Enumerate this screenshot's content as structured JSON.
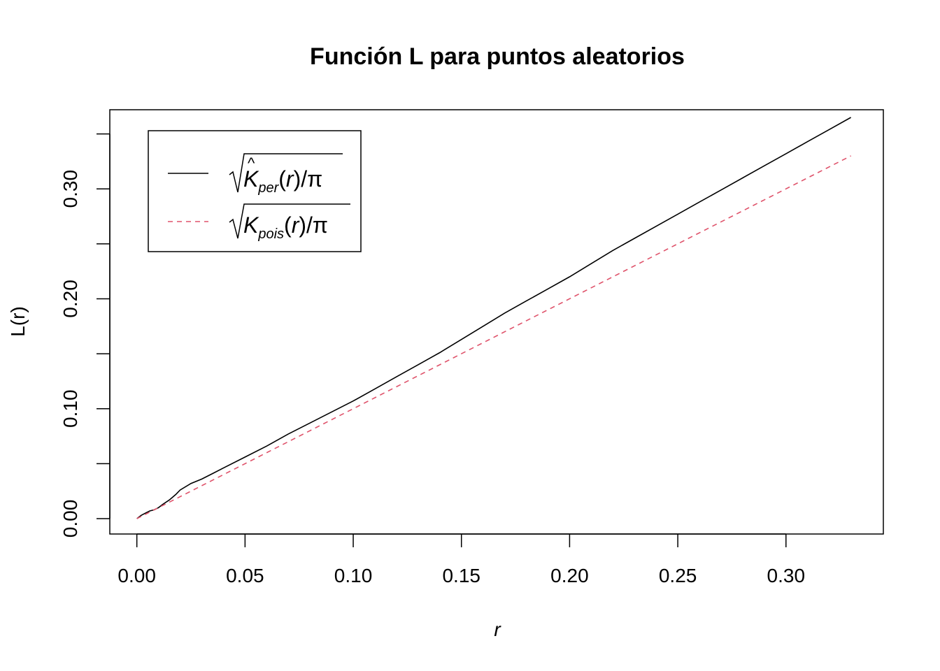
{
  "chart_data": {
    "type": "line",
    "title": "Función L para puntos aleatorios",
    "xlabel": "r",
    "ylabel": "L(r)",
    "xlim": [
      -0.0125,
      0.345
    ],
    "ylim": [
      -0.014,
      0.372
    ],
    "xticks": [
      0.0,
      0.05,
      0.1,
      0.15,
      0.2,
      0.25,
      0.3
    ],
    "xtick_labels": [
      "0.00",
      "0.05",
      "0.10",
      "0.15",
      "0.20",
      "0.25",
      "0.30"
    ],
    "yticks": [
      0.0,
      0.05,
      0.1,
      0.15,
      0.2,
      0.25,
      0.3,
      0.35
    ],
    "ytick_labels": [
      "0.00",
      "",
      "0.10",
      "",
      "0.20",
      "",
      "0.30",
      ""
    ],
    "legend_position": "top-left",
    "series": [
      {
        "name": "sqrt(K_per(r)/π)",
        "color": "#000000",
        "dash": "solid",
        "x": [
          0.0,
          0.002,
          0.004,
          0.006,
          0.008,
          0.01,
          0.012,
          0.015,
          0.018,
          0.02,
          0.025,
          0.03,
          0.035,
          0.04,
          0.05,
          0.06,
          0.07,
          0.08,
          0.09,
          0.1,
          0.11,
          0.12,
          0.13,
          0.14,
          0.15,
          0.16,
          0.17,
          0.18,
          0.19,
          0.2,
          0.21,
          0.22,
          0.23,
          0.24,
          0.25,
          0.26,
          0.27,
          0.28,
          0.29,
          0.3,
          0.31,
          0.32,
          0.33
        ],
        "y": [
          0.0,
          0.003,
          0.005,
          0.007,
          0.008,
          0.01,
          0.013,
          0.017,
          0.022,
          0.026,
          0.032,
          0.036,
          0.041,
          0.046,
          0.056,
          0.066,
          0.077,
          0.087,
          0.097,
          0.107,
          0.118,
          0.129,
          0.14,
          0.151,
          0.163,
          0.175,
          0.187,
          0.198,
          0.209,
          0.22,
          0.232,
          0.244,
          0.255,
          0.266,
          0.277,
          0.288,
          0.299,
          0.31,
          0.321,
          0.332,
          0.343,
          0.354,
          0.365
        ]
      },
      {
        "name": "sqrt(K_pois(r)/π)",
        "color": "#DF536B",
        "dash": "dashed",
        "x": [
          0.0,
          0.33
        ],
        "y": [
          0.0,
          0.33
        ]
      }
    ],
    "legend": {
      "per": {
        "base": "K",
        "sub": "per",
        "arg": "(r)",
        "div": "/π"
      },
      "pois": {
        "base": "K",
        "sub": "pois",
        "arg": "(r)",
        "div": "/π"
      }
    }
  }
}
